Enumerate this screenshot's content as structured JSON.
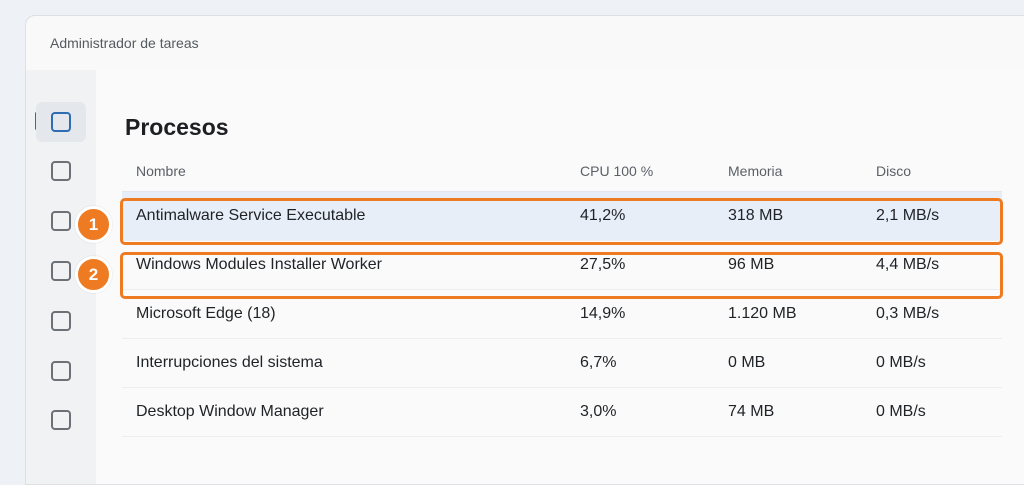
{
  "window": {
    "title": "Administrador de tareas"
  },
  "sidebar": {
    "items": [
      {
        "icon": "nav-box-icon",
        "active": true
      },
      {
        "icon": "nav-box-icon",
        "active": false
      },
      {
        "icon": "nav-box-icon",
        "active": false
      },
      {
        "icon": "nav-box-icon",
        "active": false
      },
      {
        "icon": "nav-box-icon",
        "active": false
      },
      {
        "icon": "nav-box-icon",
        "active": false
      },
      {
        "icon": "nav-box-icon",
        "active": false
      }
    ]
  },
  "main": {
    "title": "Procesos",
    "columns": {
      "name": "Nombre",
      "cpu": "CPU 100 %",
      "memory": "Memoria",
      "disk": "Disco"
    },
    "rows": [
      {
        "name": "Antimalware Service Executable",
        "cpu": "41,2%",
        "memory": "318 MB",
        "disk": "2,1 MB/s"
      },
      {
        "name": "Windows Modules Installer Worker",
        "cpu": "27,5%",
        "memory": "96 MB",
        "disk": "4,4 MB/s"
      },
      {
        "name": "Microsoft Edge (18)",
        "cpu": "14,9%",
        "memory": "1.120 MB",
        "disk": "0,3 MB/s"
      },
      {
        "name": "Interrupciones del sistema",
        "cpu": "6,7%",
        "memory": "0 MB",
        "disk": "0 MB/s"
      },
      {
        "name": "Desktop Window Manager",
        "cpu": "3,0%",
        "memory": "74 MB",
        "disk": "0 MB/s"
      }
    ]
  },
  "annotations": [
    {
      "label": "1",
      "color": "#ee7b22"
    },
    {
      "label": "2",
      "color": "#ee7b22"
    }
  ]
}
